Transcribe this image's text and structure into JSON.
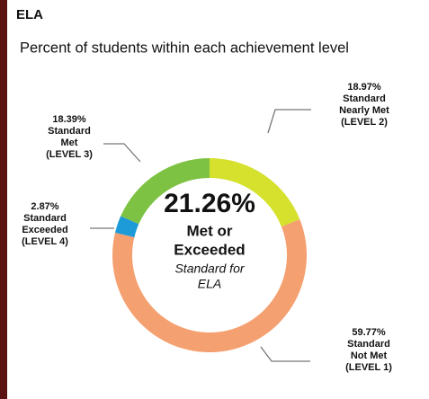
{
  "chart_data": {
    "type": "donut",
    "title": "ELA",
    "subtitle": "Percent of students within each achievement level",
    "values": [
      18.97,
      59.77,
      2.87,
      18.39
    ],
    "value_labels": [
      "18.97%",
      "59.77%",
      "2.87%",
      "18.39%"
    ],
    "categories": [
      [
        "Standard",
        "Nearly Met",
        "(LEVEL 2)"
      ],
      [
        "Standard",
        "Not Met",
        "(LEVEL 1)"
      ],
      [
        "Standard",
        "Exceeded",
        "(LEVEL 4)"
      ],
      [
        "Standard",
        "Met",
        "(LEVEL 3)"
      ]
    ],
    "colors": [
      "#d5e12c",
      "#f5a070",
      "#1d9ad8",
      "#7dc243"
    ],
    "center_value": 21.26,
    "center_value_label": "21.26%",
    "center_lines": [
      "Met or",
      "Exceeded"
    ],
    "center_note": [
      "Standard for",
      "ELA"
    ]
  }
}
